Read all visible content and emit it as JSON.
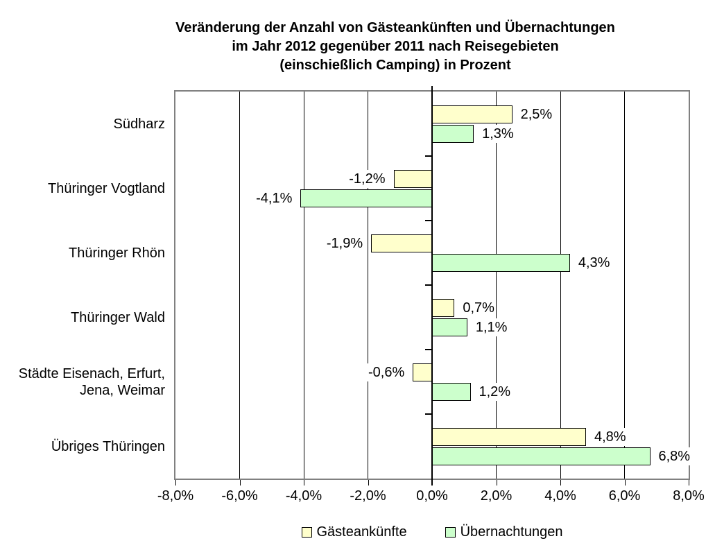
{
  "title": {
    "lines": [
      "Veränderung der Anzahl von Gästeankünften und Übernachtungen",
      "im Jahr 2012 gegenüber 2011 nach Reisegebieten",
      "(einschießlich Camping) in Prozent"
    ]
  },
  "chart_data": {
    "type": "bar",
    "orientation": "horizontal",
    "title": "Veränderung der Anzahl von Gästeankünften und Übernachtungen im Jahr 2012 gegenüber 2011 nach Reisegebieten (einschießlich Camping) in Prozent",
    "categories": [
      "Südharz",
      "Thüringer Vogtland",
      "Thüringer Rhön",
      "Thüringer Wald",
      "Städte Eisenach, Erfurt, Jena, Weimar",
      "Übriges Thüringen"
    ],
    "series": [
      {
        "name": "Gästeankünfte",
        "color": "#FFFFCC",
        "values": [
          2.5,
          -1.2,
          -1.9,
          0.7,
          -0.6,
          4.8
        ],
        "value_labels": [
          "2,5%",
          "-1,2%",
          "-1,9%",
          "0,7%",
          "-0,6%",
          "4,8%"
        ]
      },
      {
        "name": "Übernachtungen",
        "color": "#CCFFCC",
        "values": [
          1.3,
          -4.1,
          4.3,
          1.1,
          1.2,
          6.8
        ],
        "value_labels": [
          "1,3%",
          "-4,1%",
          "4,3%",
          "1,1%",
          "1,2%",
          "6,8%"
        ]
      }
    ],
    "xlim": [
      -8,
      8
    ],
    "x_ticks": [
      -8,
      -6,
      -4,
      -2,
      0,
      2,
      4,
      6,
      8
    ],
    "x_tick_labels": [
      "-8,0%",
      "-6,0%",
      "-4,0%",
      "-2,0%",
      "0,0%",
      "2,0%",
      "4,0%",
      "6,0%",
      "8,0%"
    ],
    "grid": true,
    "legend_position": "bottom"
  },
  "legend": {
    "items": [
      {
        "label": "Gästeankünfte",
        "color": "#FFFFCC"
      },
      {
        "label": "Übernachtungen",
        "color": "#CCFFCC"
      }
    ]
  },
  "colors": {
    "background": "#FFFFFF",
    "plot_frame": "#808080",
    "gridline": "#000000",
    "axis": "#000000",
    "bar_border": "#000000"
  }
}
